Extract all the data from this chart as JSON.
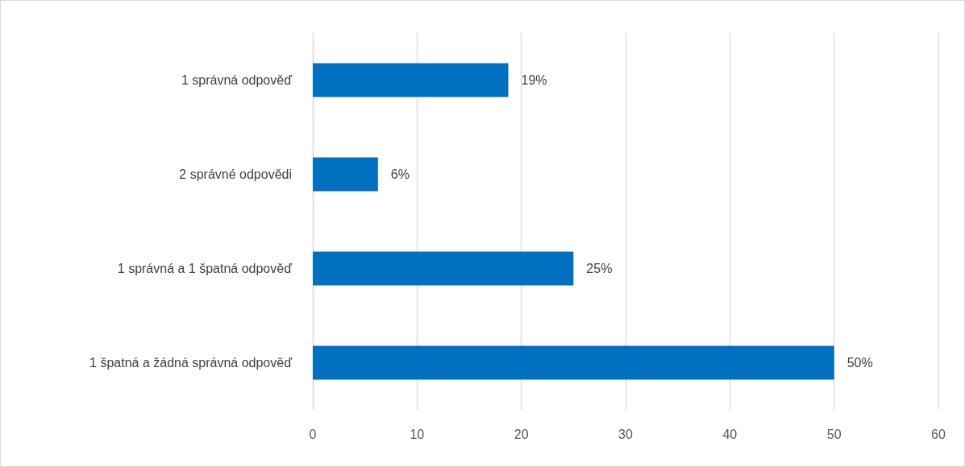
{
  "chart_data": {
    "type": "bar",
    "orientation": "horizontal",
    "categories": [
      "1 správná odpověď",
      "2 správné odpovědi",
      "1 správná a 1 špatná odpověď",
      "1 špatná a žádná správná odpověď"
    ],
    "values": [
      18.75,
      6.25,
      25,
      50
    ],
    "value_labels": [
      "19%",
      "6%",
      "25%",
      "50%"
    ],
    "color": "#0070c0",
    "xlim": [
      0,
      60
    ],
    "xticks": [
      0,
      10,
      20,
      30,
      40,
      50,
      60
    ],
    "grid": "x"
  }
}
